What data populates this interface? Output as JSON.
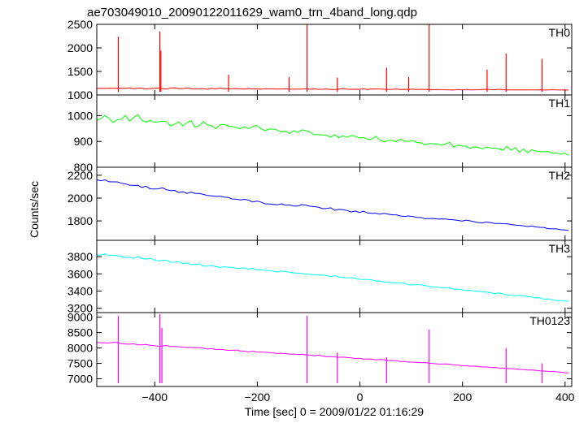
{
  "chart_data": {
    "type": "line",
    "title": "ae703049010_20090122011629_wam0_trn_4band_long.qdp",
    "xlabel": "Time [sec] 0 = 2009/01/22 01:16:29",
    "ylabel": "Counts/sec",
    "xlim": [
      -513,
      413
    ],
    "xticks": [
      -400,
      -200,
      0,
      200,
      400
    ],
    "x_sample_step": 8,
    "panels": [
      {
        "name": "TH0",
        "color": "#ff0000",
        "ylim": [
          1000,
          2500
        ],
        "yticks": [
          1000,
          1500,
          2000,
          2500
        ],
        "spikes": [
          {
            "x": -471,
            "y": 2240
          },
          {
            "x": -390,
            "y": 2350
          },
          {
            "x": -388,
            "y": 1940
          },
          {
            "x": -256,
            "y": 1430
          },
          {
            "x": -138,
            "y": 1380
          },
          {
            "x": -103,
            "y": 2500
          },
          {
            "x": -44,
            "y": 1370
          },
          {
            "x": 52,
            "y": 1580
          },
          {
            "x": 95,
            "y": 1380
          },
          {
            "x": 135,
            "y": 2500
          },
          {
            "x": 248,
            "y": 1540
          },
          {
            "x": 285,
            "y": 1880
          },
          {
            "x": 355,
            "y": 1770
          }
        ],
        "values": [
          1140,
          1143,
          1140,
          1145,
          1142,
          1141,
          1144,
          1143,
          1152,
          1133,
          1145,
          1147,
          1128,
          1137,
          1142,
          1152,
          1136,
          1125,
          1149,
          1153,
          1137,
          1137,
          1151,
          1137,
          1127,
          1135,
          1133,
          1120,
          1141,
          1130,
          1149,
          1133,
          1133,
          1132,
          1136,
          1131,
          1125,
          1138,
          1128,
          1130,
          1122,
          1133,
          1128,
          1133,
          1125,
          1128,
          1131,
          1124,
          1123,
          1124,
          1125,
          1131,
          1121,
          1130,
          1121,
          1120,
          1127,
          1115,
          1117,
          1123,
          1138,
          1123,
          1121,
          1122,
          1119,
          1132,
          1114,
          1129,
          1127,
          1127,
          1120,
          1118,
          1121,
          1128,
          1115,
          1121,
          1118,
          1124,
          1118,
          1120,
          1116,
          1115,
          1110,
          1117,
          1112,
          1110,
          1109,
          1106,
          1117,
          1109,
          1117,
          1109,
          1111,
          1110,
          1117,
          1121,
          1113,
          1110,
          1120,
          1112,
          1108,
          1108,
          1107,
          1109,
          1108,
          1109,
          1107,
          1108,
          1110,
          1106,
          1109,
          1112,
          1108,
          1105,
          1109,
          1106
        ]
      },
      {
        "name": "TH1",
        "color": "#00ff00",
        "ylim": [
          800,
          1080
        ],
        "yticks": [
          800,
          900,
          1000
        ],
        "spikes": [],
        "values": [
          982,
          988,
          1001,
          990,
          973,
          984,
          986,
          1001,
          979,
          993,
          1004,
          982,
          975,
          982,
          975,
          976,
          978,
          977,
          960,
          967,
          976,
          960,
          973,
          980,
          955,
          961,
          977,
          964,
          961,
          949,
          964,
          966,
          960,
          958,
          954,
          949,
          957,
          950,
          958,
          962,
          950,
          942,
          948,
          948,
          944,
          937,
          940,
          931,
          942,
          935,
          945,
          942,
          936,
          926,
          926,
          925,
          925,
          916,
          926,
          914,
          922,
          916,
          923,
          920,
          913,
          915,
          909,
          909,
          920,
          906,
          898,
          904,
          904,
          898,
          909,
          902,
          900,
          903,
          896,
          895,
          887,
          892,
          891,
          891,
          886,
          890,
          897,
          878,
          886,
          882,
          882,
          873,
          879,
          877,
          871,
          878,
          874,
          874,
          871,
          866,
          881,
          866,
          876,
          858,
          871,
          856,
          868,
          863,
          860,
          860,
          861,
          855,
          856,
          851,
          855,
          846
        ]
      },
      {
        "name": "TH2",
        "color": "#0000ff",
        "ylim": [
          1630,
          2270
        ],
        "yticks": [
          1800,
          2000,
          2200
        ],
        "spikes": [],
        "values": [
          2160,
          2152,
          2160,
          2143,
          2142,
          2142,
          2130,
          2124,
          2113,
          2111,
          2112,
          2093,
          2104,
          2081,
          2080,
          2081,
          2090,
          2072,
          2065,
          2067,
          2049,
          2055,
          2041,
          2052,
          2041,
          2040,
          2032,
          2023,
          2020,
          2015,
          2017,
          2009,
          2005,
          1992,
          1991,
          1984,
          1989,
          1982,
          1965,
          1974,
          1966,
          1950,
          1948,
          1945,
          1941,
          1950,
          1938,
          1940,
          1930,
          1930,
          1943,
          1937,
          1929,
          1925,
          1921,
          1907,
          1909,
          1915,
          1893,
          1901,
          1898,
          1891,
          1878,
          1887,
          1874,
          1885,
          1870,
          1867,
          1867,
          1859,
          1867,
          1860,
          1853,
          1853,
          1843,
          1839,
          1843,
          1839,
          1831,
          1830,
          1820,
          1820,
          1822,
          1817,
          1818,
          1816,
          1812,
          1810,
          1805,
          1798,
          1807,
          1801,
          1793,
          1786,
          1783,
          1791,
          1785,
          1778,
          1778,
          1776,
          1775,
          1768,
          1763,
          1761,
          1757,
          1750,
          1755,
          1747,
          1744,
          1743,
          1732,
          1732,
          1730,
          1723,
          1720,
          1717
        ]
      },
      {
        "name": "TH3",
        "color": "#00ffff",
        "ylim": [
          3150,
          3990
        ],
        "yticks": [
          3200,
          3400,
          3600,
          3800
        ],
        "spikes": [],
        "values": [
          3820,
          3818,
          3834,
          3813,
          3817,
          3812,
          3801,
          3792,
          3792,
          3780,
          3800,
          3781,
          3770,
          3782,
          3762,
          3752,
          3757,
          3760,
          3735,
          3736,
          3742,
          3719,
          3728,
          3710,
          3710,
          3717,
          3690,
          3690,
          3701,
          3685,
          3675,
          3683,
          3679,
          3678,
          3663,
          3665,
          3669,
          3655,
          3663,
          3646,
          3648,
          3641,
          3638,
          3631,
          3621,
          3633,
          3627,
          3619,
          3612,
          3608,
          3606,
          3597,
          3596,
          3586,
          3588,
          3587,
          3581,
          3568,
          3579,
          3564,
          3559,
          3553,
          3556,
          3550,
          3536,
          3535,
          3534,
          3531,
          3515,
          3515,
          3505,
          3505,
          3497,
          3495,
          3496,
          3490,
          3474,
          3472,
          3476,
          3474,
          3465,
          3453,
          3448,
          3445,
          3441,
          3435,
          3438,
          3422,
          3423,
          3416,
          3406,
          3412,
          3399,
          3396,
          3393,
          3388,
          3381,
          3369,
          3378,
          3367,
          3355,
          3353,
          3346,
          3350,
          3344,
          3337,
          3330,
          3319,
          3323,
          3305,
          3310,
          3298,
          3290,
          3289,
          3284,
          3281
        ]
      },
      {
        "name": "TH0123",
        "color": "#ff00ff",
        "ylim": [
          6750,
          9150
        ],
        "yticks": [
          7000,
          7500,
          8000,
          8500,
          9000
        ],
        "spikes": [
          {
            "x": -471,
            "y": 9050
          },
          {
            "x": -390,
            "y": 9100
          },
          {
            "x": -386,
            "y": 8650
          },
          {
            "x": -103,
            "y": 9050
          },
          {
            "x": -44,
            "y": 7850
          },
          {
            "x": 52,
            "y": 7700
          },
          {
            "x": 135,
            "y": 8600
          },
          {
            "x": 285,
            "y": 8000
          },
          {
            "x": 355,
            "y": 7500
          }
        ],
        "values": [
          8180,
          8170,
          8166,
          8161,
          8185,
          8176,
          8138,
          8129,
          8125,
          8138,
          8103,
          8104,
          8117,
          8089,
          8073,
          8055,
          8065,
          8081,
          8045,
          8053,
          8040,
          8030,
          8016,
          8015,
          8008,
          8007,
          7993,
          7965,
          7980,
          7950,
          7958,
          7941,
          7923,
          7923,
          7935,
          7905,
          7896,
          7872,
          7896,
          7869,
          7865,
          7863,
          7850,
          7838,
          7820,
          7830,
          7817,
          7800,
          7802,
          7783,
          7796,
          7775,
          7770,
          7743,
          7767,
          7739,
          7714,
          7723,
          7711,
          7697,
          7707,
          7688,
          7680,
          7658,
          7667,
          7642,
          7644,
          7640,
          7615,
          7625,
          7620,
          7589,
          7593,
          7587,
          7559,
          7559,
          7541,
          7541,
          7535,
          7523,
          7527,
          7506,
          7494,
          7483,
          7478,
          7480,
          7476,
          7450,
          7445,
          7426,
          7422,
          7409,
          7411,
          7401,
          7383,
          7385,
          7362,
          7368,
          7351,
          7346,
          7330,
          7331,
          7319,
          7305,
          7300,
          7283,
          7287,
          7276,
          7257,
          7254,
          7241,
          7238,
          7227,
          7219,
          7198,
          7192
        ]
      }
    ]
  }
}
